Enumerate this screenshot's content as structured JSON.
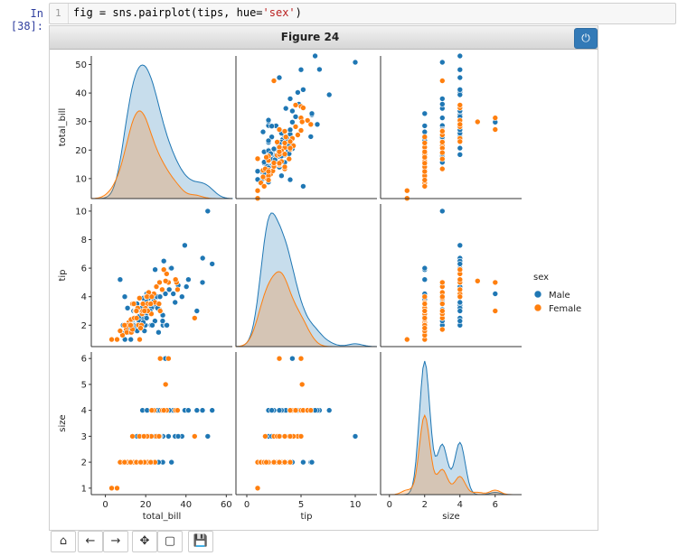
{
  "cell": {
    "prompt": "In [38]:",
    "line_number": "1",
    "code_parts": [
      "fig = sns.pairplot(tips, hue=",
      "'sex'",
      ")"
    ]
  },
  "figure": {
    "title": "Figure 24",
    "power_icon": "power-icon",
    "power_glyph": "⏻"
  },
  "toolbar": {
    "buttons": [
      {
        "name": "home-icon",
        "glyph": "⌂"
      },
      {
        "name": "back-arrow-icon",
        "glyph": "←"
      },
      {
        "name": "forward-arrow-icon",
        "glyph": "→"
      },
      {
        "name": "pan-icon",
        "glyph": "✥"
      },
      {
        "name": "zoom-rect-icon",
        "glyph": "▢"
      },
      {
        "name": "save-icon",
        "glyph": "💾"
      }
    ]
  },
  "chart_data": {
    "type": "scatter",
    "variables": [
      "total_bill",
      "tip",
      "size"
    ],
    "hue": "sex",
    "legend": {
      "title": "sex",
      "entries": [
        "Male",
        "Female"
      ],
      "position": "right"
    },
    "colors": {
      "Male": "#1f77b4",
      "Female": "#ff7f0e"
    },
    "axes": {
      "total_bill": {
        "ticks": [
          10,
          20,
          30,
          40,
          50
        ],
        "xticks": [
          0,
          20,
          40,
          60
        ],
        "range": [
          3,
          53
        ],
        "xrange": [
          -7,
          63
        ]
      },
      "tip": {
        "ticks": [
          2,
          4,
          6,
          8,
          10
        ],
        "xticks": [
          0,
          5,
          10
        ],
        "range": [
          0.5,
          10.5
        ],
        "xrange": [
          -1,
          12
        ]
      },
      "size": {
        "ticks": [
          1,
          2,
          3,
          4,
          5,
          6
        ],
        "xticks": [
          0,
          2,
          4,
          6
        ],
        "range": [
          0.75,
          6.25
        ],
        "xrange": [
          -0.5,
          7.5
        ]
      }
    },
    "points": {
      "Male": [
        [
          21.0,
          3.5,
          3
        ],
        [
          23.7,
          3.3,
          2
        ],
        [
          25.3,
          4.7,
          4
        ],
        [
          8.8,
          2.0,
          2
        ],
        [
          26.9,
          3.1,
          3
        ],
        [
          15.0,
          2.0,
          2
        ],
        [
          14.8,
          3.0,
          2
        ],
        [
          21.6,
          3.9,
          2
        ],
        [
          15.4,
          1.6,
          2
        ],
        [
          10.3,
          1.7,
          2
        ],
        [
          18.4,
          2.5,
          4
        ],
        [
          20.7,
          3.4,
          4
        ],
        [
          18.0,
          2.0,
          3
        ],
        [
          24.6,
          3.6,
          4
        ],
        [
          15.0,
          1.8,
          2
        ],
        [
          17.5,
          2.0,
          2
        ],
        [
          19.8,
          3.2,
          2
        ],
        [
          28.6,
          2.0,
          3
        ],
        [
          48.3,
          6.7,
          4
        ],
        [
          32.4,
          6.0,
          4
        ],
        [
          34.8,
          5.2,
          4
        ],
        [
          50.8,
          10.0,
          3
        ],
        [
          40.2,
          4.7,
          4
        ],
        [
          30.1,
          2.0,
          4
        ],
        [
          31.3,
          5.0,
          3
        ],
        [
          16.0,
          2.0,
          2
        ],
        [
          13.4,
          2.0,
          2
        ],
        [
          12.0,
          1.5,
          2
        ],
        [
          22.8,
          3.2,
          2
        ],
        [
          38.0,
          4.0,
          3
        ],
        [
          20.3,
          2.8,
          2
        ],
        [
          16.3,
          2.0,
          2
        ],
        [
          39.4,
          7.6,
          4
        ],
        [
          24.1,
          3.7,
          3
        ],
        [
          20.4,
          2.5,
          2
        ],
        [
          13.3,
          2.3,
          2
        ],
        [
          28.5,
          2.7,
          2
        ],
        [
          11.0,
          3.2,
          2
        ],
        [
          20.5,
          4.2,
          3
        ],
        [
          29.8,
          4.2,
          6
        ],
        [
          25.6,
          4.0,
          3
        ],
        [
          17.8,
          3.0,
          2
        ],
        [
          25.0,
          3.5,
          2
        ],
        [
          23.1,
          4.0,
          3
        ],
        [
          44.3,
          2.5,
          3
        ],
        [
          15.5,
          3.0,
          2
        ],
        [
          9.6,
          4.0,
          2
        ],
        [
          35.3,
          5.0,
          4
        ],
        [
          16.0,
          2.5,
          2
        ],
        [
          12.6,
          1.0,
          2
        ],
        [
          30.5,
          2.0,
          4
        ],
        [
          9.9,
          1.5,
          2
        ],
        [
          24.7,
          5.9,
          2
        ],
        [
          23.9,
          4.2,
          2
        ],
        [
          11.4,
          1.6,
          2
        ],
        [
          15.7,
          3.5,
          3
        ],
        [
          26.4,
          1.5,
          2
        ],
        [
          48.2,
          5.0,
          4
        ],
        [
          13.0,
          2.0,
          2
        ],
        [
          18.3,
          3.5,
          2
        ],
        [
          27.2,
          4.0,
          4
        ],
        [
          41.2,
          5.2,
          4
        ],
        [
          12.2,
          1.8,
          2
        ],
        [
          7.3,
          5.2,
          2
        ],
        [
          19.4,
          1.6,
          2
        ],
        [
          34.6,
          3.6,
          3
        ],
        [
          28.4,
          2.3,
          4
        ],
        [
          20.1,
          3.8,
          2
        ],
        [
          25.9,
          3.2,
          4
        ],
        [
          22.1,
          2.9,
          2
        ],
        [
          17.9,
          3.2,
          2
        ],
        [
          22.7,
          2.0,
          2
        ],
        [
          14.3,
          1.9,
          2
        ],
        [
          29.0,
          6.5,
          4
        ],
        [
          22.2,
          3.0,
          3
        ],
        [
          53.0,
          6.3,
          4
        ],
        [
          18.7,
          3.9,
          3
        ],
        [
          36.1,
          4.8,
          3
        ],
        [
          10.0,
          1.5,
          2
        ],
        [
          16.7,
          2.3,
          2
        ],
        [
          20.8,
          3.0,
          3
        ],
        [
          33.7,
          4.2,
          4
        ],
        [
          15.8,
          1.6,
          2
        ],
        [
          18.3,
          2.7,
          2
        ],
        [
          10.7,
          1.7,
          2
        ],
        [
          12.7,
          2.2,
          2
        ],
        [
          27.3,
          3.0,
          3
        ],
        [
          14.1,
          2.5,
          2
        ],
        [
          22.4,
          3.5,
          3
        ],
        [
          17.2,
          1.9,
          2
        ],
        [
          24.6,
          2.3,
          3
        ],
        [
          20.0,
          2.0,
          2
        ],
        [
          31.7,
          4.5,
          4
        ],
        [
          21.7,
          4.3,
          3
        ],
        [
          19.8,
          2.0,
          2
        ],
        [
          13.8,
          2.0,
          2
        ],
        [
          16.6,
          2.6,
          2
        ],
        [
          32.8,
          6.0,
          2
        ],
        [
          45.4,
          3.0,
          4
        ],
        [
          23.3,
          2.0,
          2
        ],
        [
          11.8,
          1.7,
          2
        ],
        [
          18.8,
          2.2,
          2
        ],
        [
          27.1,
          4.0,
          4
        ],
        [
          9.7,
          1.0,
          2
        ],
        [
          14.0,
          3.0,
          2
        ]
      ],
      "Female": [
        [
          17.0,
          1.0,
          2
        ],
        [
          24.6,
          3.6,
          2
        ],
        [
          35.3,
          5.0,
          4
        ],
        [
          14.8,
          3.0,
          2
        ],
        [
          10.3,
          1.7,
          2
        ],
        [
          34.8,
          5.2,
          4
        ],
        [
          10.6,
          1.5,
          2
        ],
        [
          44.3,
          2.5,
          3
        ],
        [
          22.4,
          3.5,
          2
        ],
        [
          20.9,
          3.5,
          3
        ],
        [
          25.3,
          4.7,
          3
        ],
        [
          5.8,
          1.0,
          1
        ],
        [
          16.3,
          2.0,
          2
        ],
        [
          3.1,
          1.0,
          1
        ],
        [
          31.3,
          5.0,
          6
        ],
        [
          13.4,
          3.5,
          2
        ],
        [
          11.6,
          2.2,
          2
        ],
        [
          20.3,
          4.0,
          2
        ],
        [
          16.9,
          3.9,
          3
        ],
        [
          28.2,
          4.5,
          4
        ],
        [
          12.9,
          1.5,
          2
        ],
        [
          26.9,
          5.0,
          3
        ],
        [
          18.3,
          2.8,
          2
        ],
        [
          15.1,
          3.0,
          2
        ],
        [
          30.4,
          5.6,
          4
        ],
        [
          19.8,
          3.2,
          2
        ],
        [
          16.4,
          2.0,
          2
        ],
        [
          12.7,
          2.4,
          2
        ],
        [
          29.9,
          5.1,
          5
        ],
        [
          8.5,
          1.3,
          2
        ],
        [
          7.3,
          1.6,
          2
        ],
        [
          21.5,
          4.3,
          3
        ],
        [
          17.9,
          2.0,
          2
        ],
        [
          22.8,
          2.8,
          3
        ],
        [
          13.0,
          2.0,
          2
        ],
        [
          18.6,
          3.5,
          2
        ],
        [
          29.0,
          5.9,
          4
        ],
        [
          13.4,
          1.7,
          3
        ],
        [
          20.7,
          4.0,
          3
        ],
        [
          14.3,
          2.5,
          2
        ],
        [
          18.2,
          2.8,
          2
        ],
        [
          15.5,
          2.5,
          2
        ],
        [
          11.0,
          2.0,
          2
        ],
        [
          24.1,
          4.2,
          4
        ],
        [
          35.8,
          4.5,
          4
        ],
        [
          19.1,
          3.0,
          3
        ],
        [
          16.0,
          3.2,
          2
        ],
        [
          9.5,
          2.0,
          2
        ],
        [
          27.2,
          3.0,
          6
        ],
        [
          21.0,
          3.0,
          2
        ],
        [
          14.1,
          3.5,
          2
        ],
        [
          18.5,
          3.0,
          2
        ],
        [
          12.5,
          2.0,
          2
        ],
        [
          23.0,
          4.0,
          4
        ],
        [
          26.6,
          3.5,
          3
        ],
        [
          15.4,
          3.0,
          2
        ],
        [
          22.5,
          3.5,
          2
        ],
        [
          19.4,
          3.0,
          2
        ],
        [
          17.5,
          1.8,
          2
        ]
      ]
    },
    "axis_labels": {
      "bottom": [
        "total_bill",
        "tip",
        "size"
      ],
      "left": [
        "total_bill",
        "tip",
        "size"
      ]
    }
  }
}
